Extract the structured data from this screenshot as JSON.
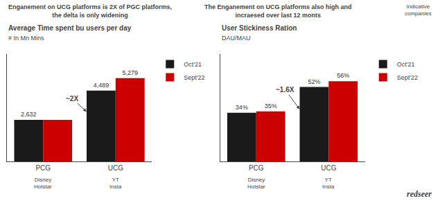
{
  "chart_data": [
    {
      "type": "bar",
      "title": "Average Time spent bu users per day",
      "subtitle": "# In Mn Mins",
      "categories": [
        "PCG",
        "UCG"
      ],
      "series": [
        {
          "name": "Oct'21",
          "color": "#1a1a1a",
          "values": [
            2632,
            4489
          ],
          "value_labels": [
            "2,632",
            "4,489"
          ]
        },
        {
          "name": "Sept'22",
          "color": "#cc0000",
          "values": [
            2632,
            5279
          ],
          "value_labels": [
            null,
            "5,279"
          ]
        }
      ],
      "ylim": [
        0,
        6800
      ],
      "grid": false,
      "legend": "top right",
      "data_labels": true,
      "tick_labels": "x",
      "annotations": [
        "~2X"
      ]
    },
    {
      "type": "bar",
      "title": "User Stickiness Ration",
      "subtitle": "DAU/MAU",
      "categories": [
        "PCG",
        "UCG"
      ],
      "series": [
        {
          "name": "Oct'21",
          "color": "#1a1a1a",
          "values": [
            34,
            52
          ],
          "value_labels": [
            "34%",
            "52%"
          ]
        },
        {
          "name": "Sept'22",
          "color": "#cc0000",
          "values": [
            35,
            56
          ],
          "value_labels": [
            "35%",
            "56%"
          ]
        }
      ],
      "ylim": [
        0,
        75
      ],
      "grid": false,
      "legend": "top right",
      "data_labels": true,
      "tick_labels": "x",
      "annotations": [
        "~1.6X"
      ]
    }
  ],
  "annotations": [
    "Enganement on UCG platforms is 2X of PGC platforms,\nthe delta is only widening",
    "The Enganement on UCG platforms also high and\nincraesed over last 12 monts",
    "Indicative\ncompanies",
    "Disney\nHotstar",
    "YT\nInsta",
    "redseer"
  ]
}
